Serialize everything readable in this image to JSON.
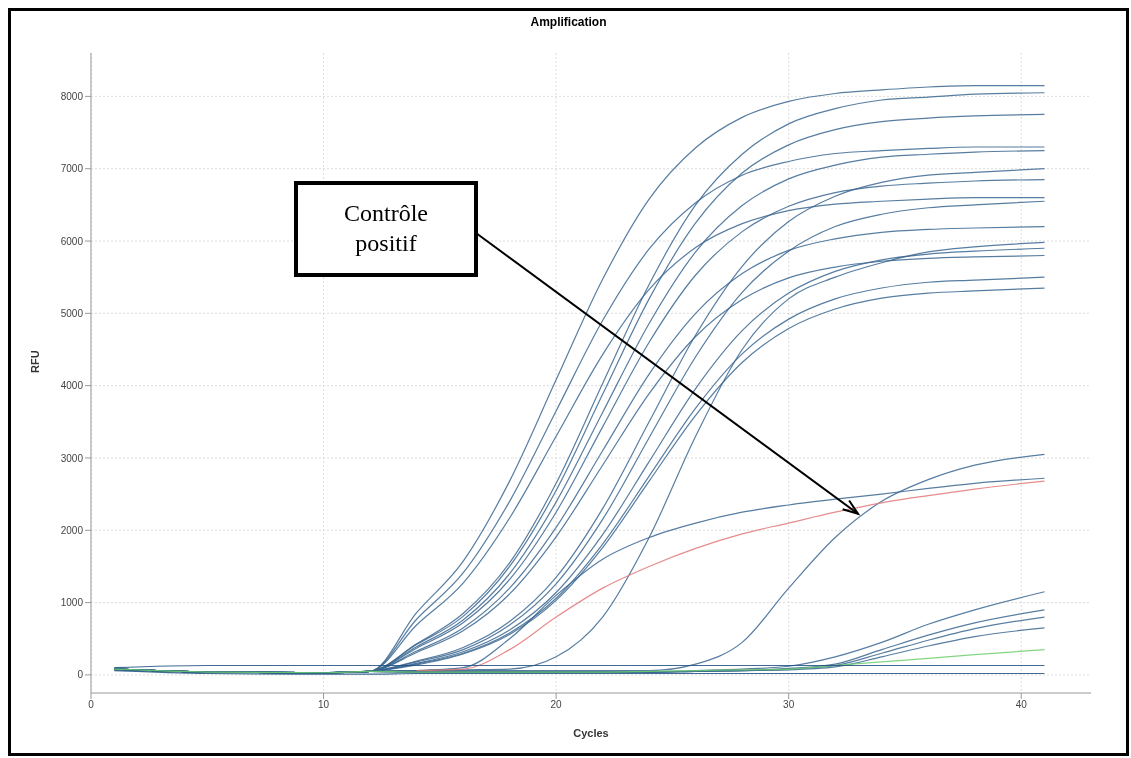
{
  "chart_data": {
    "type": "line",
    "title": "Amplification",
    "xlabel": "Cycles",
    "ylabel": "RFU",
    "x": [
      1,
      5,
      10,
      12,
      14,
      16,
      18,
      20,
      22,
      24,
      26,
      28,
      30,
      32,
      34,
      36,
      38,
      41
    ],
    "xlim": [
      0,
      43
    ],
    "xticks": [
      0,
      10,
      20,
      30,
      40
    ],
    "ylim": [
      -250,
      8600
    ],
    "yticks": [
      0,
      1000,
      2000,
      3000,
      4000,
      5000,
      6000,
      7000,
      8000
    ],
    "grid": true,
    "marker": "none",
    "line_style": "solid",
    "annotations": [
      "Contrôle positif"
    ],
    "series": [
      {
        "color": "#3a6690",
        "values": [
          80,
          40,
          30,
          50,
          860,
          1570,
          2680,
          4080,
          5470,
          6580,
          7290,
          7710,
          7930,
          8040,
          8090,
          8130,
          8150,
          8150
        ]
      },
      {
        "color": "#3a6690",
        "values": [
          80,
          40,
          30,
          50,
          430,
          850,
          1550,
          2650,
          4030,
          5400,
          6500,
          7200,
          7620,
          7830,
          7950,
          7990,
          8030,
          8050
        ]
      },
      {
        "color": "#3a6690",
        "values": [
          80,
          40,
          30,
          50,
          420,
          810,
          1500,
          2550,
          3880,
          5200,
          6250,
          6940,
          7330,
          7540,
          7650,
          7700,
          7730,
          7750
        ]
      },
      {
        "color": "#3a6690",
        "values": [
          80,
          40,
          30,
          50,
          770,
          1410,
          2400,
          3650,
          4900,
          5890,
          6530,
          6910,
          7100,
          7210,
          7250,
          7280,
          7300,
          7300
        ]
      },
      {
        "color": "#3a6690",
        "values": [
          80,
          40,
          30,
          50,
          390,
          760,
          1400,
          2390,
          3630,
          4860,
          5850,
          6490,
          6860,
          7050,
          7160,
          7200,
          7230,
          7250
        ]
      },
      {
        "color": "#3a6690",
        "values": [
          80,
          40,
          30,
          50,
          370,
          720,
          1320,
          2250,
          3430,
          4600,
          5530,
          6130,
          6480,
          6670,
          6760,
          6800,
          6830,
          6850
        ]
      },
      {
        "color": "#3a6690",
        "values": [
          80,
          40,
          30,
          50,
          690,
          1270,
          2170,
          3300,
          4430,
          5330,
          5910,
          6240,
          6420,
          6510,
          6550,
          6580,
          6600,
          6600
        ]
      },
      {
        "color": "#3a6690",
        "values": [
          80,
          40,
          30,
          50,
          180,
          350,
          690,
          1260,
          2150,
          3280,
          4400,
          5290,
          5860,
          6200,
          6370,
          6460,
          6500,
          6550
        ]
      },
      {
        "color": "#3a6690",
        "values": [
          80,
          40,
          30,
          50,
          330,
          650,
          1200,
          2040,
          3100,
          4160,
          5000,
          5550,
          5870,
          6030,
          6120,
          6160,
          6180,
          6200
        ]
      },
      {
        "color": "#3a6690",
        "values": [
          80,
          40,
          30,
          50,
          160,
          320,
          620,
          1140,
          1940,
          2950,
          3960,
          4760,
          5280,
          5580,
          5740,
          5820,
          5860,
          5900
        ]
      },
      {
        "color": "#3a6690",
        "values": [
          80,
          40,
          30,
          50,
          310,
          610,
          1120,
          1910,
          2900,
          3890,
          4680,
          5190,
          5490,
          5640,
          5720,
          5760,
          5780,
          5800
        ]
      },
      {
        "color": "#3a6690",
        "values": [
          80,
          40,
          30,
          50,
          150,
          300,
          580,
          1060,
          1810,
          2750,
          3690,
          4440,
          4920,
          5200,
          5350,
          5430,
          5460,
          5500
        ]
      },
      {
        "color": "#3a6690",
        "values": [
          80,
          40,
          30,
          50,
          140,
          290,
          560,
          1030,
          1760,
          2680,
          3590,
          4320,
          4790,
          5060,
          5210,
          5280,
          5310,
          5350
        ]
      },
      {
        "color": "#3a6690",
        "values": [
          80,
          40,
          30,
          50,
          190,
          380,
          740,
          1350,
          2300,
          3500,
          4700,
          5650,
          6270,
          6620,
          6810,
          6910,
          6950,
          7000
        ]
      },
      {
        "color": "#3a6690",
        "values": [
          70,
          40,
          30,
          50,
          60,
          70,
          80,
          250,
          800,
          1900,
          3300,
          4500,
          5200,
          5500,
          5700,
          5850,
          5920,
          5980
        ]
      },
      {
        "color": "#3a6690",
        "values": [
          80,
          40,
          30,
          50,
          60,
          60,
          60,
          60,
          60,
          60,
          150,
          450,
          1200,
          1900,
          2400,
          2700,
          2900,
          3050
        ]
      },
      {
        "color": "#3a6690",
        "values": [
          80,
          40,
          30,
          50,
          60,
          100,
          500,
          1100,
          1600,
          1900,
          2100,
          2250,
          2350,
          2430,
          2500,
          2580,
          2650,
          2720
        ]
      },
      {
        "color": "#e07878",
        "values": [
          null,
          null,
          null,
          null,
          60,
          80,
          350,
          800,
          1200,
          1500,
          1750,
          1950,
          2100,
          2250,
          2380,
          2480,
          2570,
          2680
        ]
      },
      {
        "color": "#3a6690",
        "values": [
          80,
          40,
          30,
          50,
          40,
          40,
          40,
          40,
          40,
          40,
          60,
          80,
          120,
          250,
          450,
          700,
          900,
          1150
        ]
      },
      {
        "color": "#3a6690",
        "values": [
          80,
          40,
          30,
          50,
          40,
          40,
          40,
          40,
          40,
          40,
          50,
          60,
          90,
          150,
          350,
          550,
          720,
          900
        ]
      },
      {
        "color": "#3a6690",
        "values": [
          80,
          40,
          30,
          50,
          40,
          40,
          40,
          40,
          40,
          40,
          50,
          60,
          80,
          130,
          300,
          480,
          640,
          800
        ]
      },
      {
        "color": "#3a6690",
        "values": [
          80,
          40,
          30,
          50,
          40,
          40,
          40,
          40,
          40,
          40,
          50,
          60,
          70,
          110,
          250,
          400,
          530,
          650
        ]
      },
      {
        "color": "#6ccf6c",
        "values": [
          80,
          40,
          30,
          50,
          40,
          40,
          40,
          40,
          40,
          50,
          60,
          70,
          80,
          130,
          180,
          230,
          280,
          350
        ]
      },
      {
        "color": "#1f4f80",
        "values": [
          100,
          130,
          130,
          130,
          130,
          130,
          130,
          130,
          130,
          130,
          130,
          130,
          130,
          130,
          130,
          130,
          130,
          130
        ]
      },
      {
        "color": "#1f4f80",
        "values": [
          60,
          20,
          10,
          10,
          20,
          20,
          20,
          20,
          20,
          20,
          20,
          20,
          20,
          20,
          20,
          20,
          20,
          20
        ]
      }
    ]
  }
}
